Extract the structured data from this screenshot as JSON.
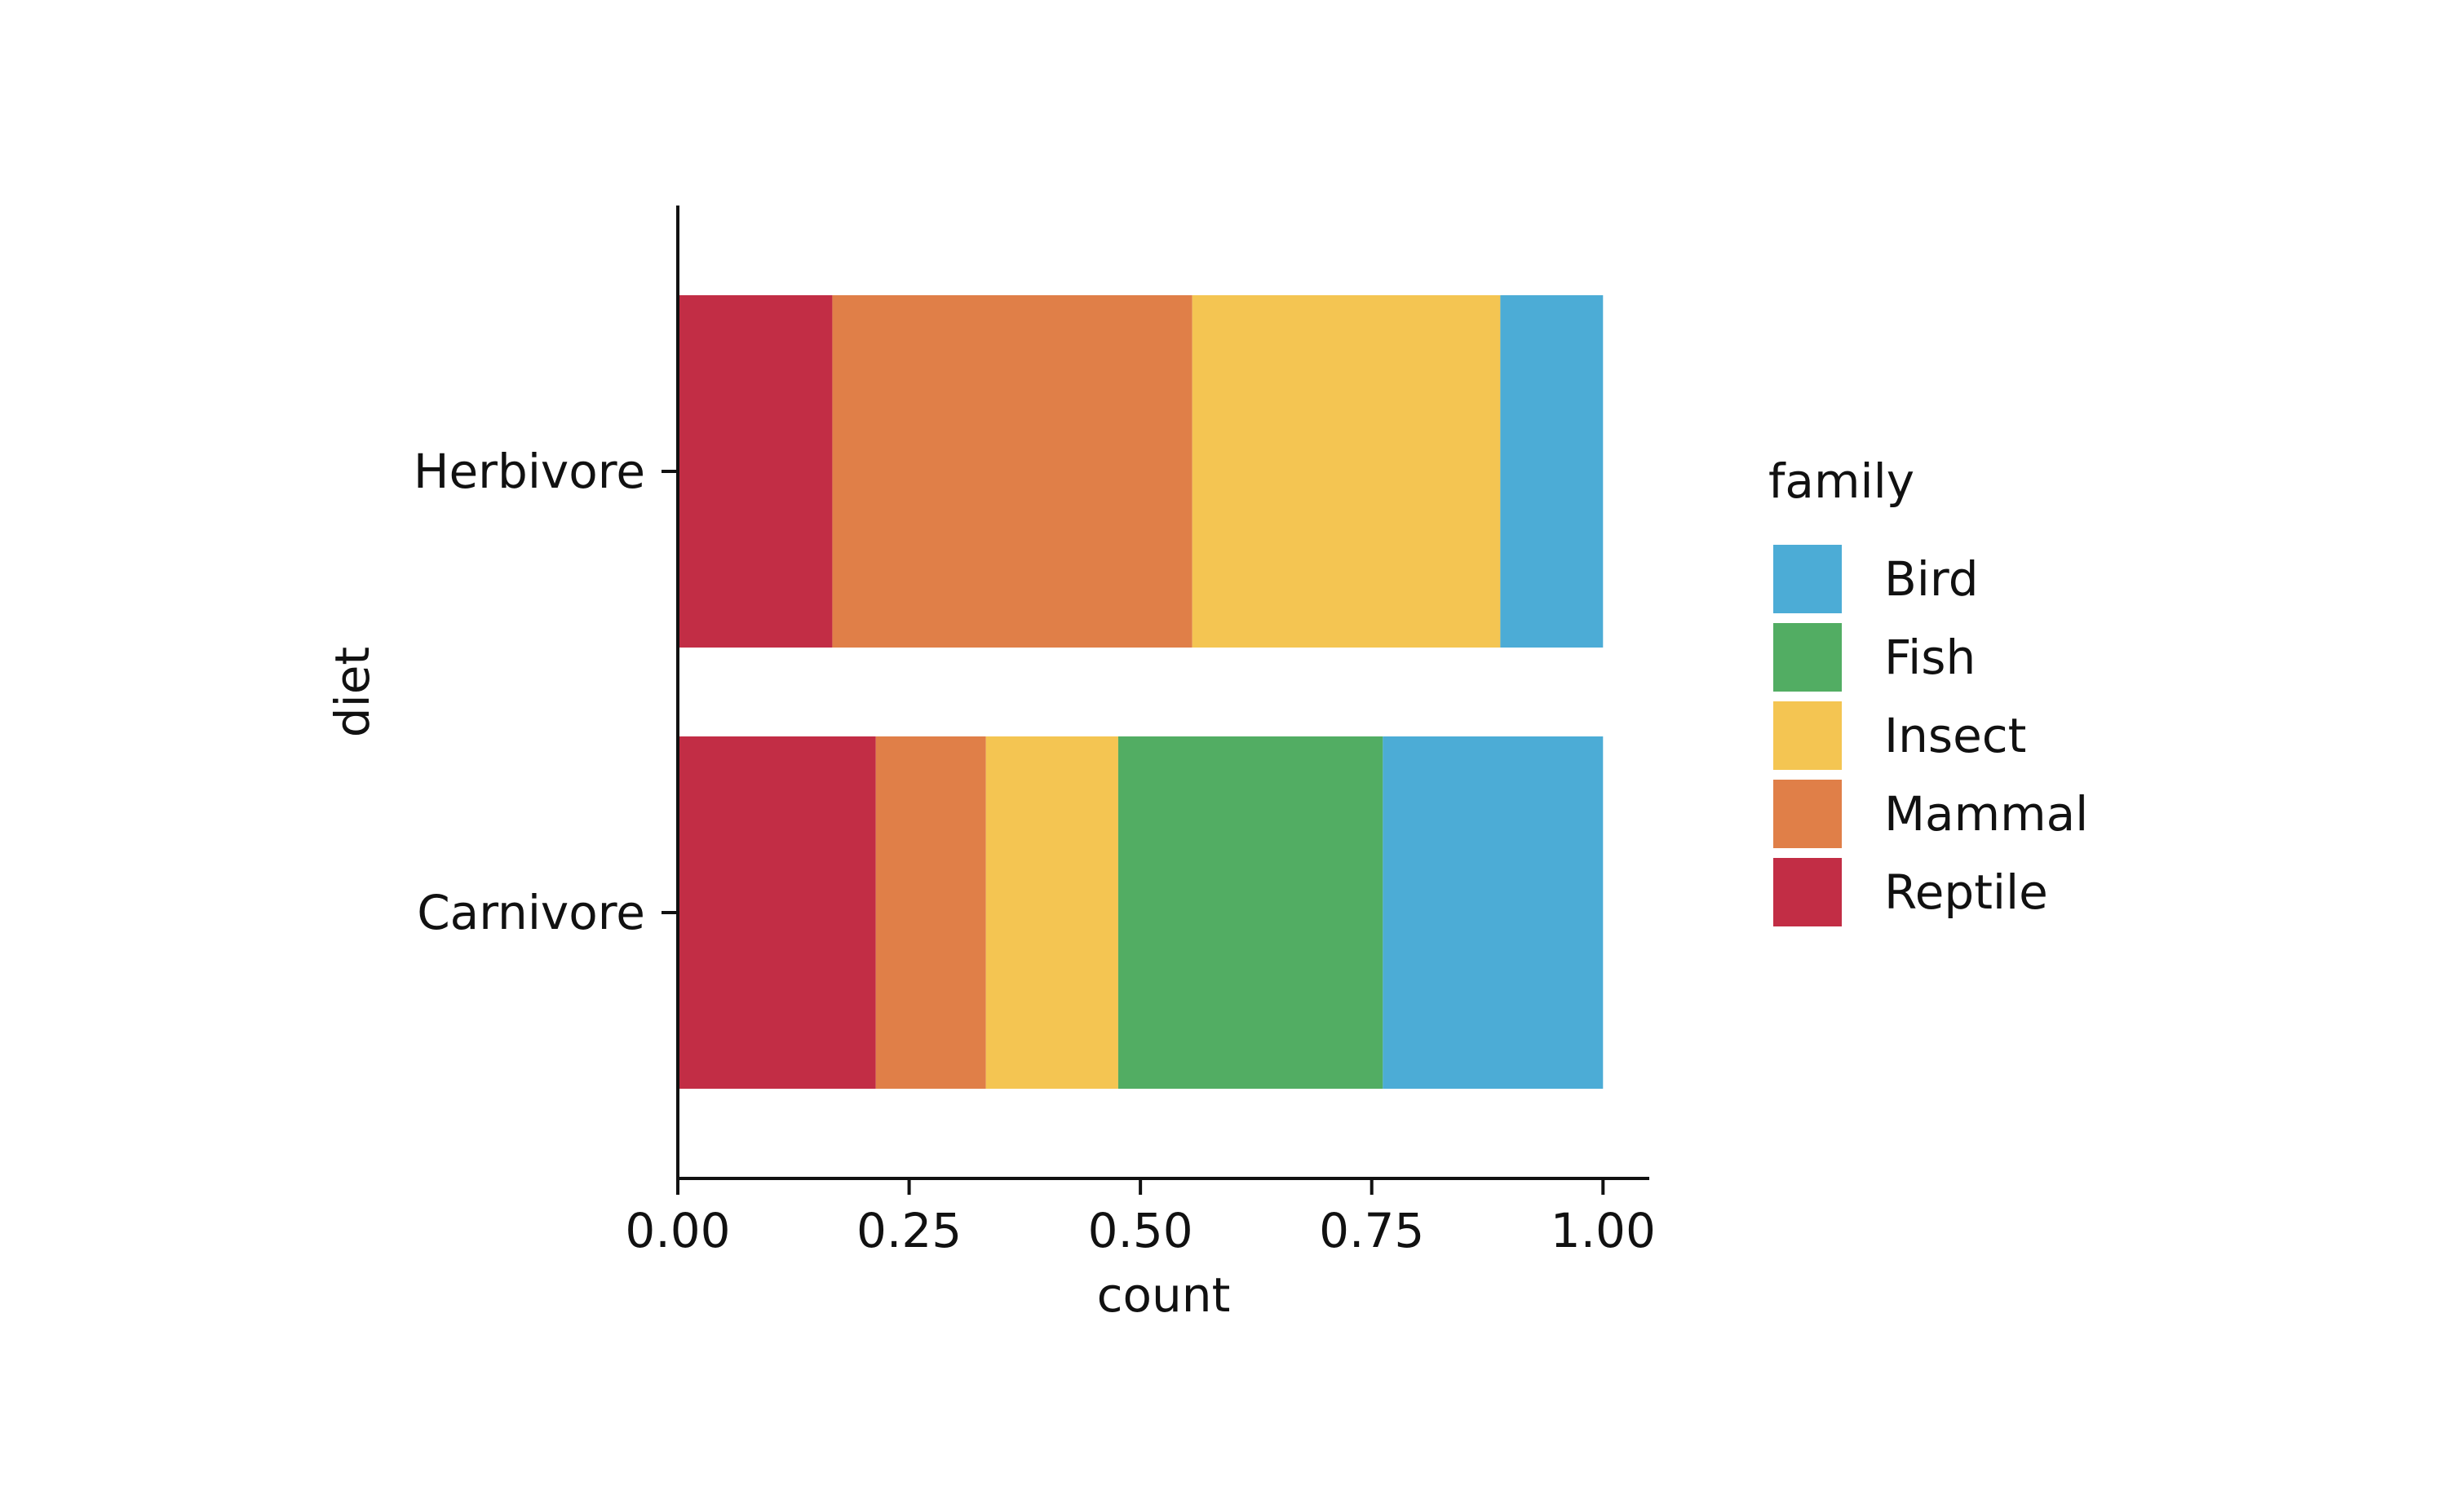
{
  "chart_data": {
    "type": "bar",
    "orientation": "horizontal",
    "stacked": true,
    "title": "",
    "xlabel": "count",
    "ylabel": "diet",
    "xlim": [
      0,
      1.05
    ],
    "xticks": [
      0,
      0.25,
      0.5,
      0.75,
      1.0
    ],
    "xtick_labels": [
      "0.00",
      "0.25",
      "0.50",
      "0.75",
      "1.00"
    ],
    "categories": [
      "Herbivore",
      "Carnivore"
    ],
    "series": [
      {
        "name": "Reptile",
        "color": "#c22d45",
        "values": [
          0.167,
          0.214
        ]
      },
      {
        "name": "Mammal",
        "color": "#e07f48",
        "values": [
          0.389,
          0.119
        ]
      },
      {
        "name": "Insect",
        "color": "#f4c552",
        "values": [
          0.333,
          0.143
        ]
      },
      {
        "name": "Fish",
        "color": "#52ad63",
        "values": [
          0.0,
          0.286
        ]
      },
      {
        "name": "Bird",
        "color": "#4cacd6",
        "values": [
          0.111,
          0.238
        ]
      }
    ],
    "legend": {
      "title": "family",
      "placement": "right",
      "order": [
        "Bird",
        "Fish",
        "Insect",
        "Mammal",
        "Reptile"
      ]
    },
    "grid": false
  }
}
